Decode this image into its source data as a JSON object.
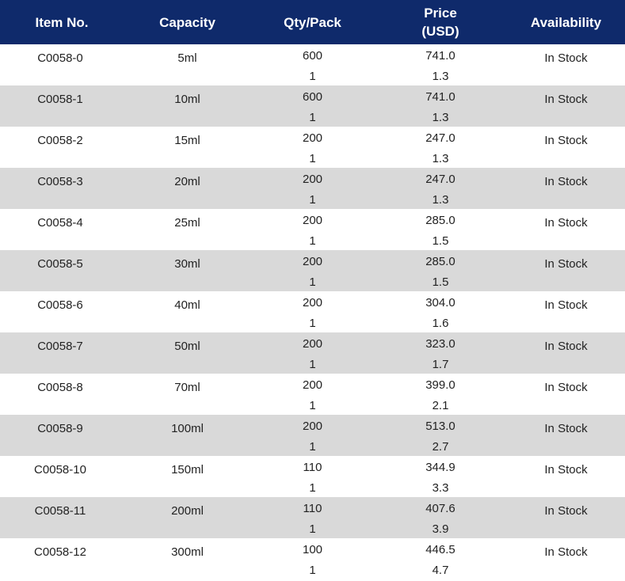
{
  "header": {
    "item_no": "Item No.",
    "capacity": "Capacity",
    "qty_pack": "Qty/Pack",
    "price_line1": "Price",
    "price_line2": "(USD)",
    "availability": "Availability"
  },
  "rows": [
    {
      "item": "C0058-0",
      "capacity": "5ml",
      "qty_bulk": "600",
      "qty_single": "1",
      "price_bulk": "741.0",
      "price_single": "1.3",
      "availability": "In Stock"
    },
    {
      "item": "C0058-1",
      "capacity": "10ml",
      "qty_bulk": "600",
      "qty_single": "1",
      "price_bulk": "741.0",
      "price_single": "1.3",
      "availability": "In Stock"
    },
    {
      "item": "C0058-2",
      "capacity": "15ml",
      "qty_bulk": "200",
      "qty_single": "1",
      "price_bulk": "247.0",
      "price_single": "1.3",
      "availability": "In Stock"
    },
    {
      "item": "C0058-3",
      "capacity": "20ml",
      "qty_bulk": "200",
      "qty_single": "1",
      "price_bulk": "247.0",
      "price_single": "1.3",
      "availability": "In Stock"
    },
    {
      "item": "C0058-4",
      "capacity": "25ml",
      "qty_bulk": "200",
      "qty_single": "1",
      "price_bulk": "285.0",
      "price_single": "1.5",
      "availability": "In Stock"
    },
    {
      "item": "C0058-5",
      "capacity": "30ml",
      "qty_bulk": "200",
      "qty_single": "1",
      "price_bulk": "285.0",
      "price_single": "1.5",
      "availability": "In Stock"
    },
    {
      "item": "C0058-6",
      "capacity": "40ml",
      "qty_bulk": "200",
      "qty_single": "1",
      "price_bulk": "304.0",
      "price_single": "1.6",
      "availability": "In Stock"
    },
    {
      "item": "C0058-7",
      "capacity": "50ml",
      "qty_bulk": "200",
      "qty_single": "1",
      "price_bulk": "323.0",
      "price_single": "1.7",
      "availability": "In Stock"
    },
    {
      "item": "C0058-8",
      "capacity": "70ml",
      "qty_bulk": "200",
      "qty_single": "1",
      "price_bulk": "399.0",
      "price_single": "2.1",
      "availability": "In Stock"
    },
    {
      "item": "C0058-9",
      "capacity": "100ml",
      "qty_bulk": "200",
      "qty_single": "1",
      "price_bulk": "513.0",
      "price_single": "2.7",
      "availability": "In Stock"
    },
    {
      "item": "C0058-10",
      "capacity": "150ml",
      "qty_bulk": "110",
      "qty_single": "1",
      "price_bulk": "344.9",
      "price_single": "3.3",
      "availability": "In Stock"
    },
    {
      "item": "C0058-11",
      "capacity": "200ml",
      "qty_bulk": "110",
      "qty_single": "1",
      "price_bulk": "407.6",
      "price_single": "3.9",
      "availability": "In Stock"
    },
    {
      "item": "C0058-12",
      "capacity": "300ml",
      "qty_bulk": "100",
      "qty_single": "1",
      "price_bulk": "446.5",
      "price_single": "4.7",
      "availability": "In Stock"
    }
  ],
  "colors": {
    "header_bg": "#0f2a6b",
    "header_text": "#ffffff",
    "alt_row_bg": "#d9d9d9"
  }
}
